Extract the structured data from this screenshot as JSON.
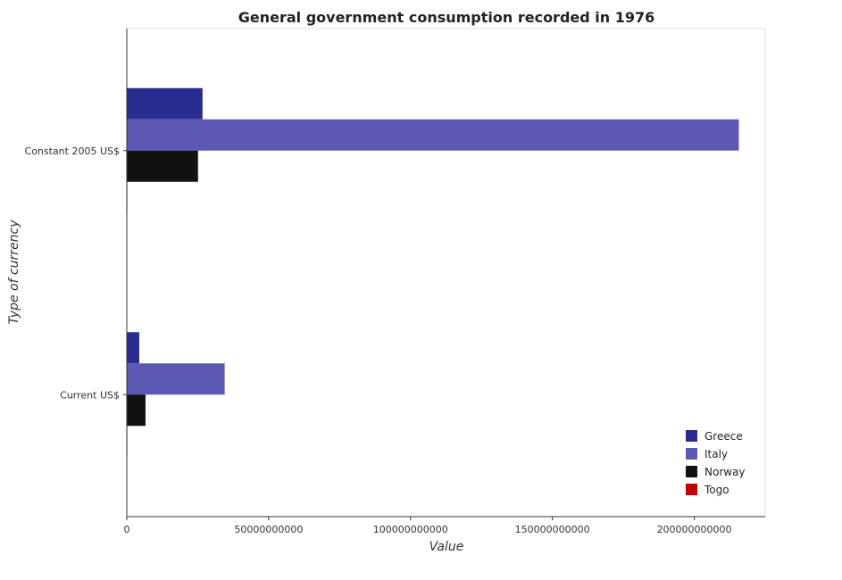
{
  "chart_data": {
    "type": "bar",
    "orientation": "horizontal",
    "title": "General government consumption recorded in 1976",
    "xlabel": "Value",
    "ylabel": "Type of currency",
    "categories": [
      "Constant 2005 US$",
      "Current US$"
    ],
    "series": [
      {
        "name": "Greece",
        "color": "#2b2c8f",
        "values": [
          26700000000,
          4400000000
        ]
      },
      {
        "name": "Italy",
        "color": "#5c59b4",
        "values": [
          215700000000,
          34500000000
        ]
      },
      {
        "name": "Norway",
        "color": "#111111",
        "values": [
          25100000000,
          6600000000
        ]
      },
      {
        "name": "Togo",
        "color": "#c00000",
        "values": [
          150000000,
          40000000
        ]
      }
    ],
    "xlim": [
      0,
      225000000000
    ],
    "xticks": [
      0,
      50000000000,
      100000000000,
      150000000000,
      200000000000
    ],
    "xtick_labels": [
      "0",
      "50000000000",
      "100000000000",
      "150000000000",
      "200000000000"
    ],
    "grid": false,
    "legend_position": "bottom-right"
  }
}
